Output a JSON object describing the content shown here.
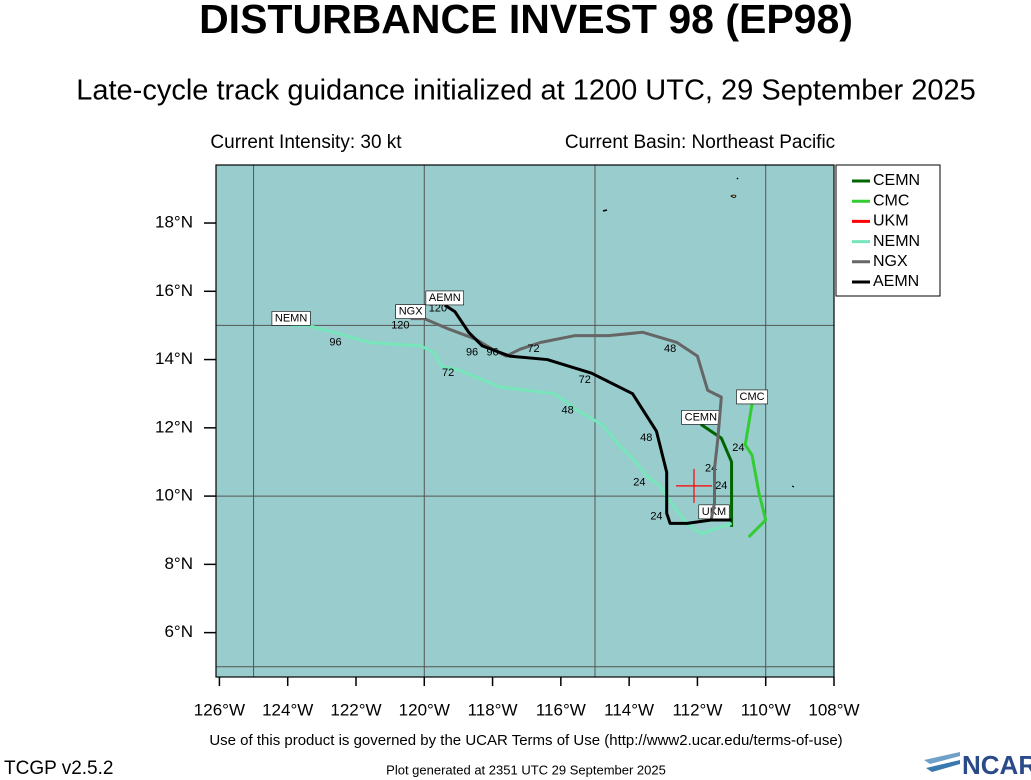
{
  "header": {
    "title": "DISTURBANCE INVEST 98 (EP98)",
    "subtitle": "Late-cycle track guidance initialized at 1200 UTC, 29 September 2025",
    "intensity": "Current Intensity: 30 kt",
    "basin": "Current Basin: Northeast Pacific"
  },
  "chart_data": {
    "type": "track_map",
    "ocean_color": "#99cccc",
    "xlim": [
      -126.1,
      -108
    ],
    "ylim": [
      4.7,
      19.7
    ],
    "xticks": [
      {
        "value": -126,
        "label": "126°W"
      },
      {
        "value": -124,
        "label": "124°W"
      },
      {
        "value": -122,
        "label": "122°W"
      },
      {
        "value": -120,
        "label": "120°W"
      },
      {
        "value": -118,
        "label": "118°W"
      },
      {
        "value": -116,
        "label": "116°W"
      },
      {
        "value": -114,
        "label": "114°W"
      },
      {
        "value": -112,
        "label": "112°W"
      },
      {
        "value": -110,
        "label": "110°W"
      },
      {
        "value": -108,
        "label": "108°W"
      }
    ],
    "yticks": [
      {
        "value": 6,
        "label": "6°N"
      },
      {
        "value": 8,
        "label": "8°N"
      },
      {
        "value": 10,
        "label": "10°N"
      },
      {
        "value": 12,
        "label": "12°N"
      },
      {
        "value": 14,
        "label": "14°N"
      },
      {
        "value": 16,
        "label": "16°N"
      },
      {
        "value": 18,
        "label": "18°N"
      }
    ],
    "grid_lon": [
      -125,
      -120,
      -115,
      -110
    ],
    "grid_lat": [
      5,
      10,
      15
    ],
    "series": [
      {
        "name": "CEMN",
        "color": "#006400",
        "lon": [
          -111.0,
          -111.0,
          -111.0,
          -111.0,
          -111.3,
          -111.9
        ],
        "lat": [
          9.1,
          9.7,
          10.5,
          11.0,
          11.7,
          12.1
        ],
        "hours": [
          {
            "hour": 24,
            "lon": -111.6,
            "lat": 10.8
          }
        ]
      },
      {
        "name": "CMC",
        "color": "#33cc33",
        "lon": [
          -110.5,
          -110.0,
          -110.2,
          -110.4,
          -110.6,
          -110.4
        ],
        "lat": [
          8.8,
          9.3,
          10.1,
          11.2,
          11.5,
          12.7
        ],
        "hours": [
          {
            "hour": 24,
            "lon": -110.8,
            "lat": 11.4
          }
        ]
      },
      {
        "name": "UKM",
        "color": "#ff0000",
        "lon": [
          -112.1
        ],
        "lat": [
          10.3
        ],
        "hours": []
      },
      {
        "name": "NEMN",
        "color": "#77e6bb",
        "lon": [
          -111.0,
          -111.9,
          -112.3,
          -112.7,
          -113.1,
          -113.5,
          -113.8,
          -114.3,
          -114.8,
          -115.5,
          -116.2,
          -117.8,
          -119.0,
          -119.5,
          -119.7,
          -120.1,
          -121.6,
          -122.3,
          -123.4,
          -123.9
        ],
        "lat": [
          9.2,
          8.9,
          9.2,
          9.7,
          10.3,
          10.6,
          11.0,
          11.5,
          12.1,
          12.5,
          13.0,
          13.2,
          13.7,
          13.8,
          14.2,
          14.4,
          14.5,
          14.7,
          15.0,
          15.0
        ],
        "hours": [
          {
            "hour": 24,
            "lon": -113.7,
            "lat": 10.4
          },
          {
            "hour": 48,
            "lon": -115.8,
            "lat": 12.5
          },
          {
            "hour": 72,
            "lon": -119.3,
            "lat": 13.6
          },
          {
            "hour": 96,
            "lon": -122.6,
            "lat": 14.5
          }
        ]
      },
      {
        "name": "NGX",
        "color": "#666666",
        "lon": [
          -111.6,
          -111.5,
          -111.5,
          -111.4,
          -111.3,
          -111.7,
          -112.0,
          -112.6,
          -113.6,
          -114.6,
          -115.6,
          -116.6,
          -117.2,
          -117.6,
          -118.0,
          -118.5,
          -119.3,
          -120.0,
          -120.4
        ],
        "lat": [
          9.3,
          9.8,
          10.8,
          11.7,
          12.9,
          13.1,
          14.1,
          14.5,
          14.8,
          14.7,
          14.7,
          14.5,
          14.3,
          14.1,
          14.3,
          14.6,
          14.9,
          15.2,
          15.2
        ],
        "hours": [
          {
            "hour": 24,
            "lon": -111.3,
            "lat": 10.3
          },
          {
            "hour": 48,
            "lon": -112.8,
            "lat": 14.3
          },
          {
            "hour": 72,
            "lon": -116.8,
            "lat": 14.3
          },
          {
            "hour": 96,
            "lon": -118.6,
            "lat": 14.2
          },
          {
            "hour": 120,
            "lon": -120.7,
            "lat": 15.0
          }
        ]
      },
      {
        "name": "AEMN",
        "color": "#000000",
        "lon": [
          -111.0,
          -111.6,
          -112.3,
          -112.8,
          -112.9,
          -112.9,
          -112.9,
          -113.2,
          -113.9,
          -115.1,
          -116.4,
          -117.5,
          -118.3,
          -118.7,
          -119.1,
          -119.4
        ],
        "lat": [
          9.3,
          9.3,
          9.2,
          9.2,
          9.5,
          10.0,
          10.7,
          11.9,
          13.0,
          13.6,
          14.0,
          14.1,
          14.4,
          14.8,
          15.4,
          15.6
        ],
        "hours": [
          {
            "hour": 24,
            "lon": -113.2,
            "lat": 9.4
          },
          {
            "hour": 48,
            "lon": -113.5,
            "lat": 11.7
          },
          {
            "hour": 72,
            "lon": -115.3,
            "lat": 13.4
          },
          {
            "hour": 96,
            "lon": -118.0,
            "lat": 14.2
          },
          {
            "hour": 120,
            "lon": -119.6,
            "lat": 15.5
          }
        ]
      }
    ]
  },
  "footer": {
    "terms": "Use of this product is governed by the UCAR Terms of Use (http://www2.ucar.edu/terms-of-use)",
    "version": "TCGP v2.5.2",
    "generated": "Plot generated at 2351 UTC  29 September 2025",
    "logo": "NCAR"
  }
}
